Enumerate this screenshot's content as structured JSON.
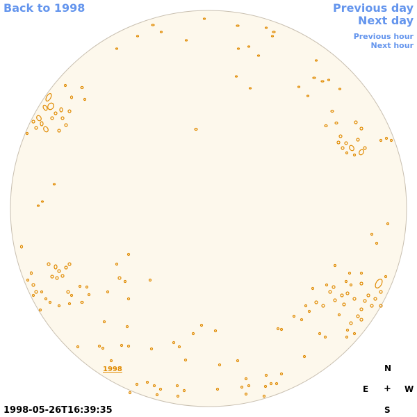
{
  "nav": {
    "back_label": "Back to 1998",
    "prev_day_label": "Previous day",
    "next_day_label": "Next day",
    "prev_hour_label": "Previous hour",
    "next_hour_label": "Next hour"
  },
  "image": {
    "year_label": "1998",
    "timestamp": "1998-05-26T16:39:35"
  },
  "compass": {
    "north": "N",
    "east": "E",
    "center": "+",
    "west": "W",
    "south": "S"
  },
  "colors": {
    "link": "#6495ed",
    "disk_fill": "#fdf8ec",
    "disk_edge": "#c8bfb0",
    "contour": "#e08a00"
  }
}
